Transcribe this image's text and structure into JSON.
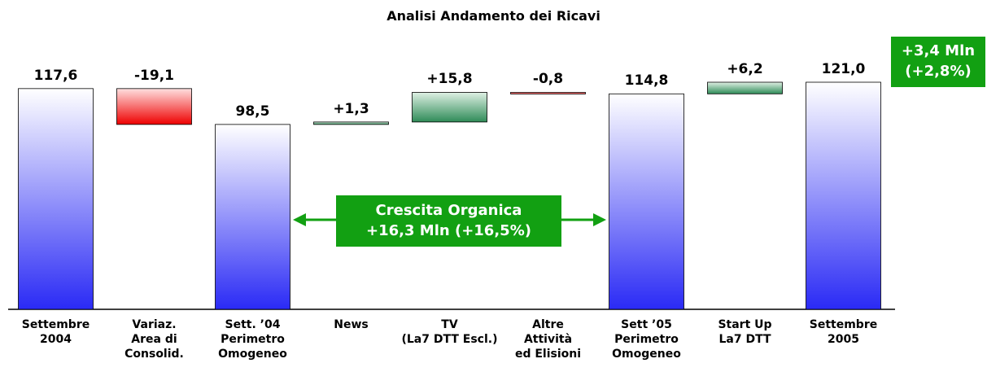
{
  "chart_data": {
    "type": "waterfall",
    "title": "Analisi Andamento dei Ricavi",
    "categories": [
      "Settembre\n2004",
      "Variaz.\nArea di\nConsolid.",
      "Sett. ’04\nPerimetro\nOmogeneo",
      "News",
      "TV\n(La7 DTT Escl.)",
      "Altre\nAttività\ned Elisioni",
      "Sett ’05\nPerimetro\nOmogeneo",
      "Start Up\nLa7 DTT",
      "Settembre\n2005"
    ],
    "values": [
      117.6,
      -19.1,
      98.5,
      1.3,
      15.8,
      -0.8,
      114.8,
      6.2,
      121.0
    ],
    "value_labels": [
      "117,6",
      "-19,1",
      "98,5",
      "+1,3",
      "+15,8",
      "-0,8",
      "114,8",
      "+6,2",
      "121,0"
    ],
    "bar_kinds": [
      "total",
      "delta",
      "total",
      "delta",
      "delta",
      "delta",
      "total",
      "delta",
      "total"
    ],
    "total_color": "#2a2af5",
    "increase_color": "#2e8b57",
    "decrease_color": "#ee0000",
    "annotations": [
      "Crescita Organica\n+16,3 Mln (+16,5%)",
      "+3,4 Mln\n(+2,8%)"
    ]
  }
}
